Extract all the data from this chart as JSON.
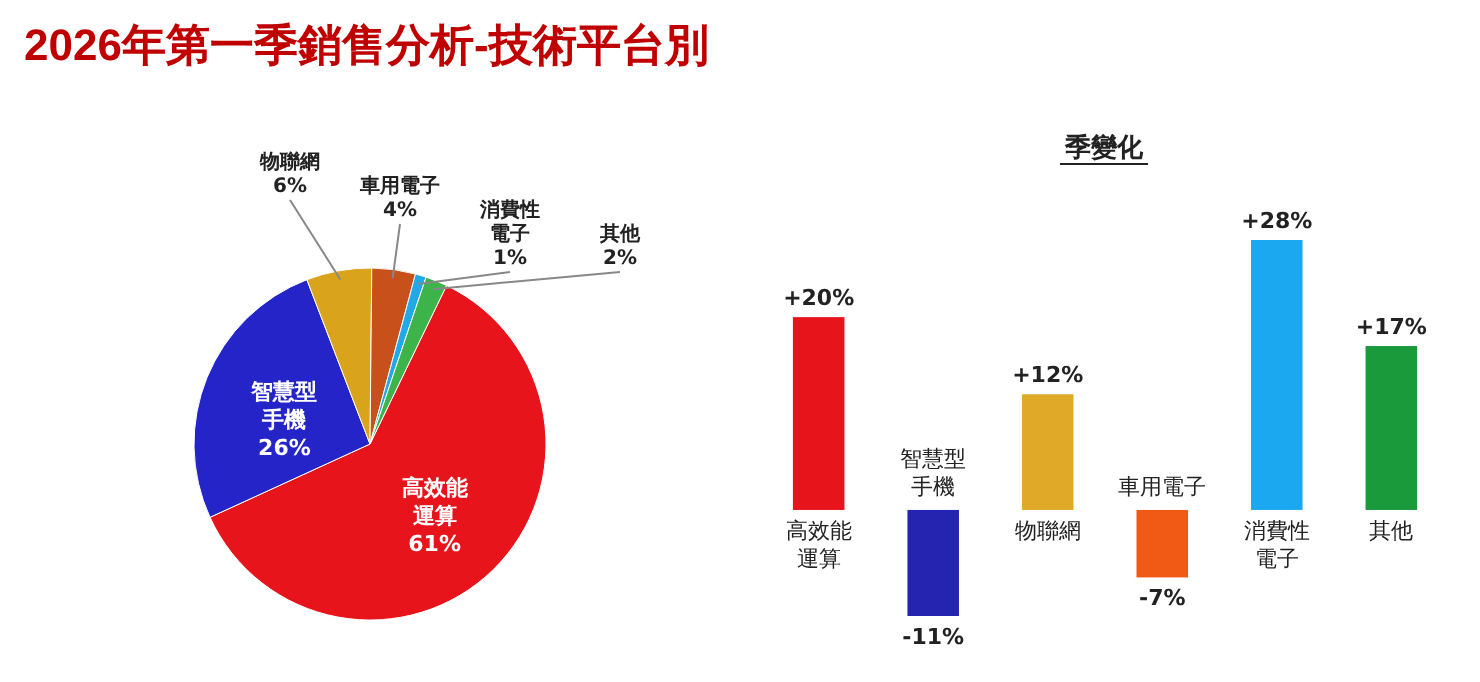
{
  "chart_data": [
    {
      "type": "pie",
      "title": "2026年第一季銷售分析-技術平台別",
      "categories": [
        "高效能運算",
        "智慧型手機",
        "物聯網",
        "車用電子",
        "消費性電子",
        "其他"
      ],
      "values": [
        61,
        26,
        6,
        4,
        1,
        2
      ],
      "value_labels": [
        "61%",
        "26%",
        "6%",
        "4%",
        "1%",
        "2%"
      ],
      "colors": [
        "#e8141b",
        "#2424c8",
        "#d9a41c",
        "#c8501a",
        "#20a8e8",
        "#3cb44a"
      ]
    },
    {
      "type": "bar",
      "title": "季變化",
      "categories": [
        "高效能運算",
        "智慧型手機",
        "物聯網",
        "車用電子",
        "消費性電子",
        "其他"
      ],
      "values": [
        20,
        -11,
        12,
        -7,
        28,
        17
      ],
      "value_labels": [
        "+20%",
        "-11%",
        "+12%",
        "-7%",
        "+28%",
        "+17%"
      ],
      "colors": [
        "#e8141b",
        "#2424b0",
        "#e0aa28",
        "#f05a14",
        "#1ca8f0",
        "#1a9a3a"
      ]
    }
  ]
}
